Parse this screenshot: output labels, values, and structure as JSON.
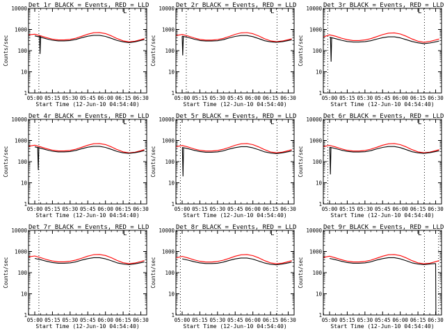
{
  "chart_data": {
    "type": "line",
    "figure": "RHESSI detector count rates, 3x3 grid of panels",
    "xlabel": "Start Time (12-Jun-10 04:54:40)",
    "ylabel": "Counts/sec",
    "x_unit": "minutes after 05:00",
    "xlim": [
      -5.3,
      95
    ],
    "x_ticks": [
      {
        "value": 0,
        "label": "05:00"
      },
      {
        "value": 15,
        "label": "05:15"
      },
      {
        "value": 30,
        "label": "05:30"
      },
      {
        "value": 45,
        "label": "05:45"
      },
      {
        "value": 60,
        "label": "06:00"
      },
      {
        "value": 75,
        "label": "06:15"
      },
      {
        "value": 90,
        "label": "06:30"
      }
    ],
    "ylim": [
      1,
      10000
    ],
    "y_scale": "log",
    "y_ticks": [
      {
        "value": 1,
        "label": "1"
      },
      {
        "value": 10,
        "label": "10"
      },
      {
        "value": 100,
        "label": "100"
      },
      {
        "value": 1000,
        "label": "1000"
      },
      {
        "value": 10000,
        "label": "10000"
      }
    ],
    "series_names": [
      "Events",
      "LLD"
    ],
    "series_colors": [
      "#000000",
      "#ff0000"
    ],
    "legend_mark": "L",
    "x_samples": [
      -5,
      0,
      5,
      10,
      15,
      20,
      25,
      30,
      35,
      40,
      45,
      50,
      55,
      60,
      65,
      70,
      75,
      80,
      85,
      90,
      93
    ],
    "panels": [
      {
        "title": "Det 1r BLACK = Events, RED = LLD",
        "dotted_x": [
          3.5,
          80.5
        ],
        "events": [
          null,
          500,
          430,
          360,
          310,
          290,
          290,
          300,
          340,
          410,
          480,
          530,
          530,
          470,
          380,
          300,
          260,
          240,
          260,
          300,
          330
        ],
        "lld": [
          560,
          600,
          500,
          410,
          350,
          320,
          320,
          340,
          390,
          480,
          600,
          700,
          720,
          640,
          500,
          370,
          290,
          260,
          280,
          330,
          370
        ],
        "events_dip": {
          "x": [
            4,
            4.5,
            5
          ],
          "y": [
            500,
            70,
            480
          ]
        }
      },
      {
        "title": "Det 2r BLACK = Events, RED = LLD",
        "dotted_x": [
          3.5,
          80.5
        ],
        "events": [
          null,
          480,
          420,
          350,
          300,
          285,
          285,
          295,
          330,
          400,
          470,
          520,
          520,
          460,
          370,
          295,
          260,
          250,
          265,
          300,
          325
        ],
        "lld": [
          520,
          580,
          490,
          400,
          340,
          315,
          315,
          335,
          380,
          470,
          590,
          690,
          710,
          630,
          490,
          365,
          290,
          265,
          285,
          330,
          365
        ],
        "events_dip": {
          "x": [
            0,
            0.5,
            1
          ],
          "y": [
            480,
            60,
            460
          ]
        }
      },
      {
        "title": "Det 3r BLACK = Events, RED = LLD",
        "dotted_x": [
          -1.5,
          80.5
        ],
        "events": [
          null,
          430,
          370,
          310,
          270,
          255,
          255,
          265,
          295,
          350,
          410,
          450,
          450,
          400,
          330,
          270,
          235,
          215,
          230,
          260,
          285
        ],
        "lld": [
          450,
          560,
          480,
          390,
          330,
          300,
          300,
          320,
          370,
          460,
          570,
          670,
          690,
          610,
          480,
          355,
          280,
          250,
          270,
          320,
          355
        ],
        "events_dip": {
          "x": [
            0.8,
            1.3,
            1.8
          ],
          "y": [
            430,
            30,
            400
          ]
        }
      },
      {
        "title": "Det 4r BLACK = Events, RED = LLD",
        "dotted_x": [
          3.5,
          80.5
        ],
        "events": [
          null,
          500,
          430,
          360,
          310,
          290,
          290,
          300,
          340,
          410,
          480,
          530,
          530,
          470,
          380,
          300,
          260,
          245,
          265,
          300,
          330
        ],
        "lld": [
          540,
          600,
          500,
          410,
          350,
          320,
          320,
          340,
          390,
          480,
          600,
          700,
          720,
          640,
          500,
          370,
          290,
          260,
          280,
          330,
          370
        ],
        "events_dip": {
          "x": [
            2.5,
            3,
            3.5
          ],
          "y": [
            490,
            40,
            470
          ]
        }
      },
      {
        "title": "Det 5r BLACK = Events, RED = LLD",
        "dotted_x": [
          -1.5,
          80.5
        ],
        "events": [
          null,
          470,
          410,
          345,
          300,
          280,
          280,
          290,
          325,
          395,
          460,
          510,
          510,
          450,
          365,
          290,
          255,
          240,
          260,
          295,
          320
        ],
        "lld": [
          510,
          580,
          490,
          400,
          345,
          318,
          318,
          338,
          385,
          475,
          595,
          695,
          715,
          635,
          495,
          368,
          288,
          262,
          282,
          330,
          368
        ],
        "events_dip": {
          "x": [
            0.2,
            0.7,
            1.2
          ],
          "y": [
            470,
            20,
            450
          ]
        }
      },
      {
        "title": "Det 6r BLACK = Events, RED = LLD",
        "dotted_x": [
          -1.5,
          80.5
        ],
        "events": [
          null,
          480,
          415,
          350,
          305,
          285,
          285,
          295,
          330,
          400,
          470,
          520,
          520,
          460,
          370,
          295,
          260,
          245,
          265,
          300,
          325
        ],
        "lld": [
          520,
          590,
          495,
          405,
          345,
          318,
          318,
          338,
          388,
          478,
          598,
          698,
          718,
          638,
          498,
          368,
          289,
          262,
          282,
          330,
          368
        ],
        "events_dip": {
          "x": [
            0.2,
            0.7,
            1.2
          ],
          "y": [
            480,
            25,
            460
          ]
        }
      },
      {
        "title": "Det 7r BLACK = Events, RED = LLD",
        "dotted_x": [
          3.5,
          80.5
        ],
        "events": [
          null,
          470,
          410,
          345,
          300,
          280,
          280,
          290,
          325,
          395,
          460,
          510,
          510,
          450,
          365,
          290,
          255,
          240,
          260,
          295,
          320
        ],
        "lld": [
          560,
          610,
          510,
          415,
          355,
          325,
          325,
          345,
          395,
          485,
          605,
          705,
          725,
          645,
          505,
          375,
          295,
          265,
          285,
          335,
          375
        ],
        "events_dip": null
      },
      {
        "title": "Det 8r BLACK = Events, RED = LLD",
        "dotted_x": [
          -1.5,
          80.5
        ],
        "events": [
          null,
          450,
          390,
          330,
          290,
          270,
          270,
          280,
          315,
          380,
          445,
          490,
          490,
          435,
          350,
          285,
          250,
          235,
          255,
          290,
          315
        ],
        "lld": [
          500,
          590,
          495,
          405,
          345,
          318,
          318,
          338,
          388,
          478,
          598,
          698,
          718,
          638,
          498,
          368,
          289,
          262,
          282,
          330,
          368
        ],
        "events_dip": null
      },
      {
        "title": "Det 9r BLACK = Events, RED = LLD",
        "dotted_x": [
          80.5,
          92.5
        ],
        "events": [
          null,
          470,
          410,
          345,
          300,
          280,
          280,
          290,
          325,
          395,
          460,
          510,
          510,
          450,
          365,
          290,
          255,
          240,
          255,
          270,
          null
        ],
        "lld": [
          530,
          600,
          500,
          410,
          350,
          320,
          320,
          340,
          390,
          480,
          600,
          700,
          720,
          640,
          500,
          370,
          290,
          262,
          280,
          330,
          370
        ],
        "events_dip": {
          "x": [
            90,
            90.2
          ],
          "y": [
            270,
            1
          ]
        }
      }
    ]
  }
}
